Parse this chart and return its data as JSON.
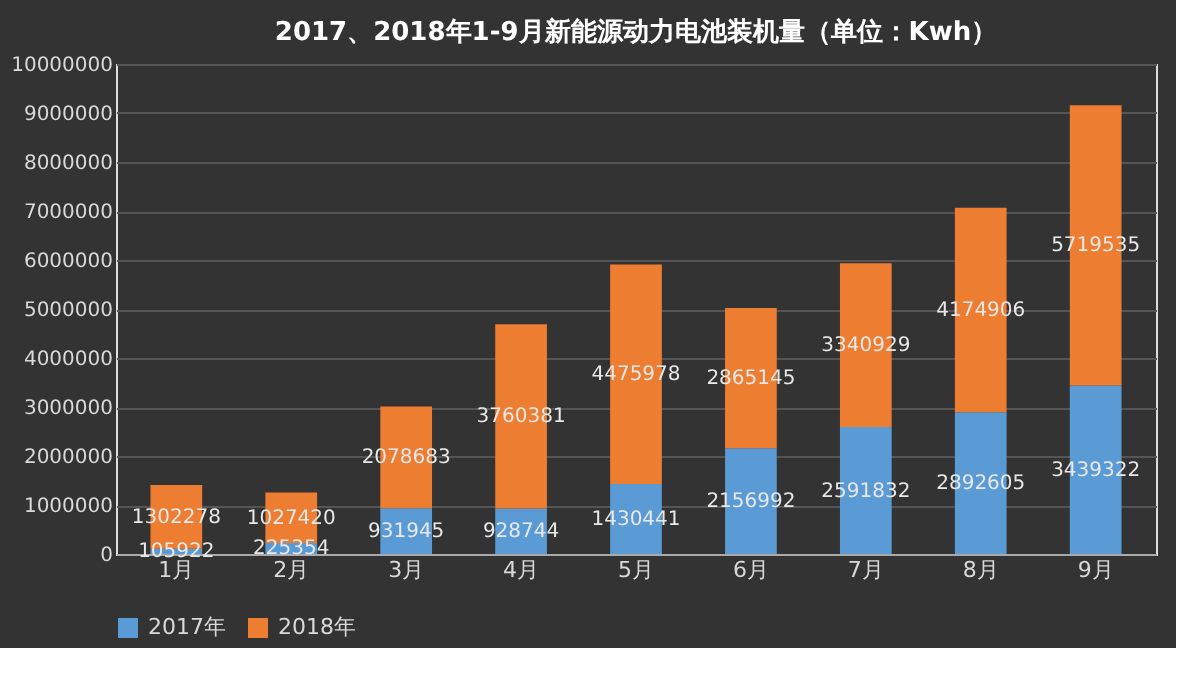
{
  "chart_data": {
    "type": "bar",
    "title": "2017、2018年1-9月新能源动力电池装机量（单位：Kwh）",
    "categories": [
      "1月",
      "2月",
      "3月",
      "4月",
      "5月",
      "6月",
      "7月",
      "8月",
      "9月"
    ],
    "stacked": true,
    "series": [
      {
        "name": "2017年",
        "color": "#5b9bd5",
        "values": [
          105922,
          225354,
          931945,
          928744,
          1430441,
          2156992,
          2591832,
          2892605,
          3439322
        ]
      },
      {
        "name": "2018年",
        "color": "#ed7d31",
        "values": [
          1302278,
          1027420,
          2078683,
          3760381,
          4475978,
          2865145,
          3340929,
          4174906,
          5719535
        ]
      }
    ],
    "ylim": [
      0,
      10000000
    ],
    "yticks": [
      0,
      1000000,
      2000000,
      3000000,
      4000000,
      5000000,
      6000000,
      7000000,
      8000000,
      9000000,
      10000000
    ],
    "grid": "y",
    "legend": "bottom",
    "data_labels": true
  }
}
